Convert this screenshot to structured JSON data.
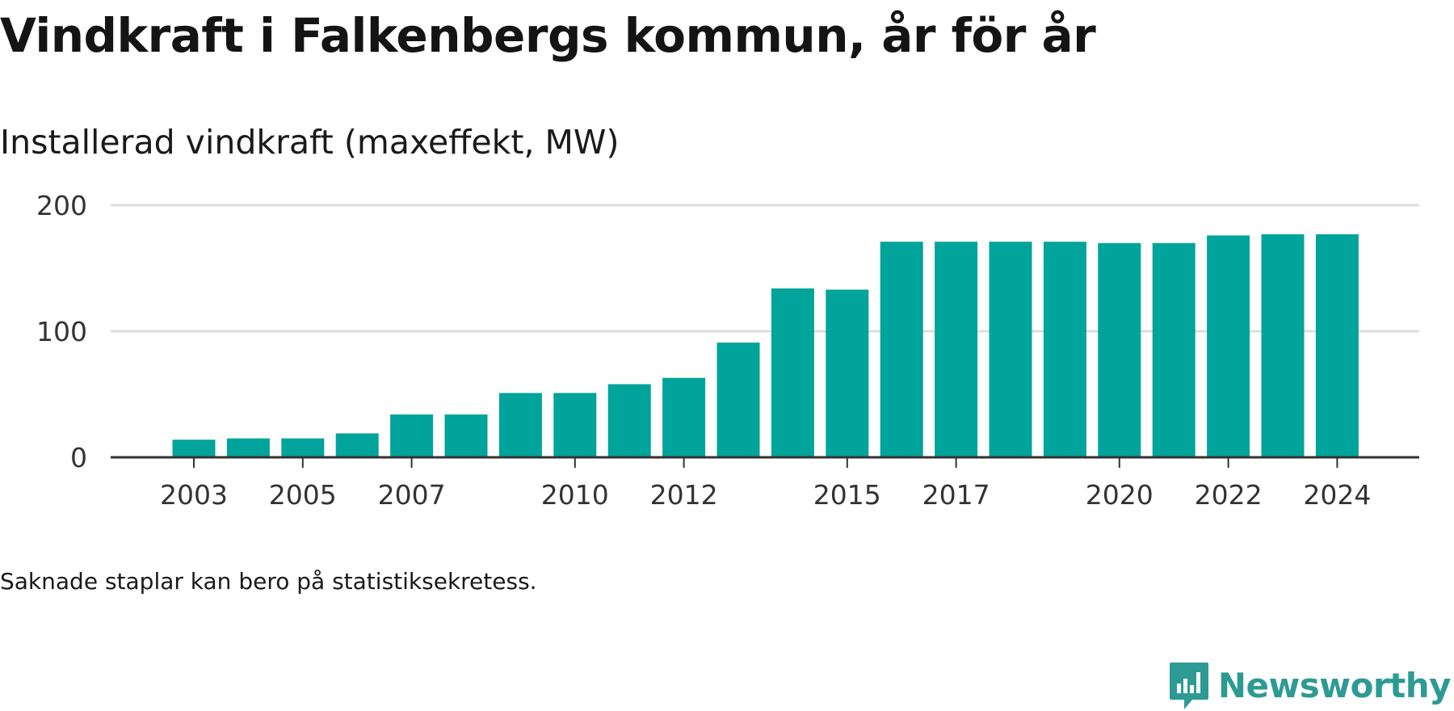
{
  "title": "Vindkraft i Falkenbergs kommun, år för år",
  "subtitle": "Installerad vindkraft (maxeffekt, MW)",
  "note": "Saknade staplar kan bero på statistiksekretess.",
  "brand": {
    "name": "Newsworthy",
    "icon": "newsworthy-logo-icon",
    "color": "#2d9b93"
  },
  "colors": {
    "bar": "#00a49a",
    "grid": "#dddddd",
    "axis": "#333333"
  },
  "chart_data": {
    "type": "bar",
    "title": "Vindkraft i Falkenbergs kommun, år för år",
    "subtitle": "Installerad vindkraft (maxeffekt, MW)",
    "xlabel": "",
    "ylabel": "",
    "categories": [
      "2003",
      "2004",
      "2005",
      "2006",
      "2007",
      "2008",
      "2009",
      "2010",
      "2011",
      "2012",
      "2013",
      "2014",
      "2015",
      "2016",
      "2017",
      "2018",
      "2019",
      "2020",
      "2021",
      "2022",
      "2023",
      "2024"
    ],
    "values": [
      14,
      15,
      15,
      19,
      34,
      34,
      51,
      51,
      58,
      63,
      91,
      134,
      133,
      171,
      171,
      171,
      171,
      170,
      170,
      176,
      177,
      177
    ],
    "x_tick_labels": [
      "2003",
      "2005",
      "2007",
      "2010",
      "2012",
      "2015",
      "2017",
      "2020",
      "2022",
      "2024"
    ],
    "y_ticks": [
      0,
      100,
      200
    ],
    "ylim": [
      0,
      200
    ],
    "grid": true,
    "legend": "none"
  }
}
